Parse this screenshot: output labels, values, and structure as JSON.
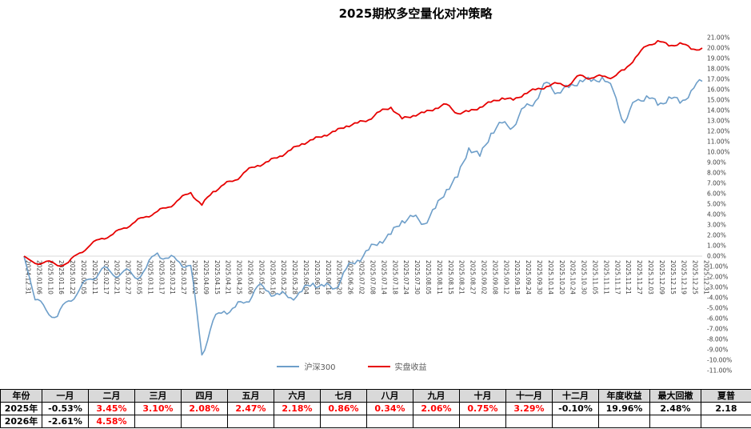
{
  "chart_data": {
    "type": "line",
    "title": "2025期权多空量化对冲策略",
    "legend_position": "bottom",
    "grid": "zero-line-only",
    "y_axis": {
      "min": -11,
      "max": 21,
      "step": 1,
      "format": "percent",
      "position": "right"
    },
    "x_labels": [
      "2024.12.31",
      "2025.01.06",
      "2025.01.10",
      "2025.01.16",
      "2025.01.22",
      "2025.02.05",
      "2025.02.11",
      "2025.02.17",
      "2025.02.21",
      "2025.02.27",
      "2025.03.05",
      "2025.03.11",
      "2025.03.17",
      "2025.03.21",
      "2025.03.27",
      "2025.04.02",
      "2025.04.09",
      "2025.04.15",
      "2025.04.21",
      "2025.04.25",
      "2025.05.06",
      "2025.05.12",
      "2025.05.16",
      "2025.05.22",
      "2025.05.28",
      "2025.06.04",
      "2025.06.10",
      "2025.06.16",
      "2025.06.20",
      "2025.06.26",
      "2025.07.02",
      "2025.07.08",
      "2025.07.14",
      "2025.07.18",
      "2025.07.24",
      "2025.07.30",
      "2025.08.05",
      "2025.08.11",
      "2025.08.15",
      "2025.08.21",
      "2025.08.27",
      "2025.09.02",
      "2025.09.08",
      "2025.09.12",
      "2025.09.18",
      "2025.09.24",
      "2025.09.30",
      "2025.10.14",
      "2025.10.20",
      "2025.10.24",
      "2025.10.30",
      "2025.11.05",
      "2025.11.11",
      "2025.11.17",
      "2025.11.21",
      "2025.11.27",
      "2025.12.03",
      "2025.12.09",
      "2025.12.15",
      "2025.12.19",
      "2025.12.25",
      "2025.12.31"
    ],
    "series": [
      {
        "name": "沪深300",
        "color": "#6D9EC9",
        "width": 1.6,
        "values": [
          0.0,
          -4.2,
          -5.2,
          -5.8,
          -4.3,
          -3.2,
          -2.2,
          -1.2,
          -1.8,
          -1.4,
          -2.1,
          -1.1,
          0.3,
          -0.2,
          -0.6,
          -0.9,
          -9.5,
          -6.2,
          -5.3,
          -4.9,
          -4.4,
          -2.9,
          -3.4,
          -3.7,
          -4.0,
          -3.4,
          -2.6,
          -2.9,
          -3.1,
          -1.2,
          -0.4,
          0.6,
          1.4,
          2.1,
          3.4,
          3.8,
          3.1,
          4.6,
          6.4,
          7.6,
          10.4,
          9.6,
          11.8,
          12.8,
          12.4,
          14.3,
          14.9,
          16.7,
          15.7,
          16.2,
          16.9,
          16.8,
          17.2,
          15.9,
          12.8,
          14.9,
          15.4,
          14.5,
          15.3,
          14.7,
          15.9,
          16.8
        ]
      },
      {
        "name": "实盘收益",
        "color": "#E60000",
        "width": 1.8,
        "values": [
          0.0,
          -0.7,
          -0.5,
          -0.9,
          -0.6,
          0.3,
          1.1,
          1.7,
          2.1,
          2.7,
          3.3,
          3.8,
          4.3,
          4.7,
          5.5,
          6.1,
          4.9,
          6.2,
          6.9,
          7.3,
          8.2,
          8.7,
          9.1,
          9.6,
          10.2,
          10.8,
          11.2,
          11.6,
          12.0,
          12.5,
          12.8,
          13.1,
          13.9,
          14.3,
          13.2,
          13.5,
          13.8,
          14.2,
          14.6,
          13.7,
          13.9,
          14.3,
          14.8,
          15.2,
          15.0,
          15.6,
          16.0,
          16.3,
          16.6,
          16.4,
          17.4,
          17.1,
          17.3,
          17.2,
          17.9,
          19.1,
          20.2,
          20.7,
          20.2,
          20.5,
          19.9,
          20.0
        ]
      }
    ]
  },
  "table": {
    "headers": [
      "年份",
      "一月",
      "二月",
      "三月",
      "四月",
      "五月",
      "六月",
      "七月",
      "八月",
      "九月",
      "十月",
      "十一月",
      "十二月",
      "年度收益",
      "最大回撤",
      "夏普"
    ],
    "rows": [
      [
        "2025年",
        "-0.53%",
        "3.45%",
        "3.10%",
        "2.08%",
        "2.47%",
        "2.18%",
        "0.86%",
        "0.34%",
        "2.06%",
        "0.75%",
        "3.29%",
        "-0.10%",
        "19.96%",
        "2.48%",
        "2.18"
      ],
      [
        "2026年",
        "-2.61%",
        "4.58%",
        "",
        "",
        "",
        "",
        "",
        "",
        "",
        "",
        "",
        "",
        "",
        "",
        ""
      ]
    ]
  }
}
